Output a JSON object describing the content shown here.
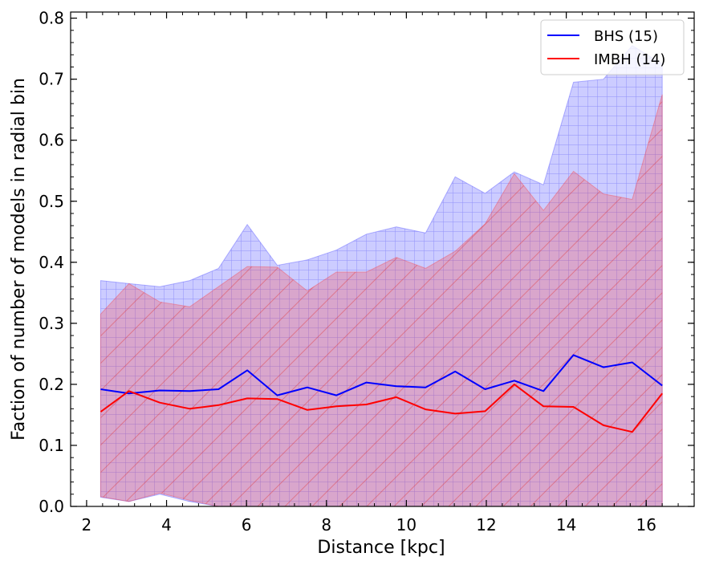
{
  "chart_data": {
    "type": "line",
    "xlabel": "Distance [kpc]",
    "ylabel": "Faction of number of models in radial bin",
    "xlim": [
      1.6,
      17.2
    ],
    "ylim": [
      0.0,
      0.81
    ],
    "xticks": [
      2,
      4,
      6,
      8,
      10,
      12,
      14,
      16
    ],
    "yticks": [
      0.0,
      0.1,
      0.2,
      0.3,
      0.4,
      0.5,
      0.6,
      0.7,
      0.8
    ],
    "xtick_labels": [
      "2",
      "4",
      "6",
      "8",
      "10",
      "12",
      "14",
      "16"
    ],
    "ytick_labels": [
      "0.0",
      "0.1",
      "0.2",
      "0.3",
      "0.4",
      "0.5",
      "0.6",
      "0.7",
      "0.8"
    ],
    "legend_position": "top-right",
    "grid": false,
    "x": [
      2.35,
      3.06,
      3.83,
      4.58,
      5.3,
      6.02,
      6.77,
      7.52,
      8.25,
      9.0,
      9.75,
      10.48,
      11.22,
      11.97,
      12.7,
      13.43,
      14.18,
      14.93,
      15.65,
      16.4
    ],
    "series": [
      {
        "name": "BHS (15)",
        "color": "#0000ff",
        "fill_color": "#3333ff",
        "hatch": "grid",
        "values": [
          0.192,
          0.185,
          0.19,
          0.189,
          0.192,
          0.223,
          0.182,
          0.195,
          0.182,
          0.203,
          0.197,
          0.195,
          0.221,
          0.192,
          0.206,
          0.189,
          0.248,
          0.228,
          0.236,
          0.198
        ],
        "upper": [
          0.37,
          0.365,
          0.36,
          0.37,
          0.39,
          0.462,
          0.395,
          0.404,
          0.42,
          0.446,
          0.458,
          0.448,
          0.54,
          0.513,
          0.548,
          0.527,
          0.695,
          0.7,
          0.755,
          0.725
        ],
        "lower": [
          0.015,
          0.008,
          0.02,
          0.008,
          0.0,
          0.0,
          0.0,
          0.0,
          0.0,
          0.0,
          0.0,
          0.0,
          0.0,
          0.0,
          0.0,
          0.0,
          0.0,
          0.0,
          0.0,
          0.0
        ]
      },
      {
        "name": "IMBH (14)",
        "color": "#ff0000",
        "fill_color": "#ff3333",
        "hatch": "diagonal",
        "values": [
          0.155,
          0.189,
          0.17,
          0.16,
          0.166,
          0.177,
          0.176,
          0.158,
          0.164,
          0.167,
          0.179,
          0.159,
          0.152,
          0.156,
          0.2,
          0.164,
          0.163,
          0.133,
          0.122,
          0.185
        ],
        "upper": [
          0.315,
          0.365,
          0.335,
          0.327,
          0.36,
          0.393,
          0.392,
          0.353,
          0.384,
          0.384,
          0.408,
          0.39,
          0.418,
          0.463,
          0.545,
          0.485,
          0.549,
          0.512,
          0.503,
          0.675
        ],
        "lower": [
          0.016,
          0.008,
          0.022,
          0.01,
          0.0,
          0.0,
          0.0,
          0.0,
          0.0,
          0.0,
          0.0,
          0.0,
          0.0,
          0.0,
          0.0,
          0.0,
          0.0,
          0.0,
          0.0,
          0.0
        ]
      }
    ]
  }
}
